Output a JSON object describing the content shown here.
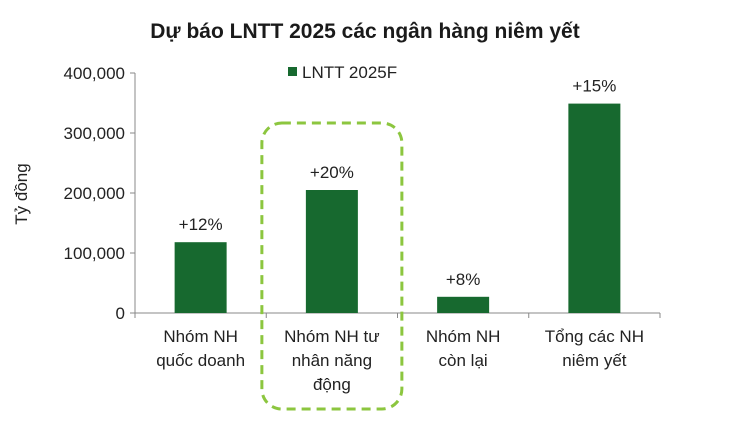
{
  "chart_data": {
    "type": "bar",
    "title": "Dự báo LNTT 2025 các ngân hàng niêm yết",
    "ylabel": "Tỷ đồng",
    "xlabel": "",
    "ylim": [
      0,
      400000
    ],
    "yticks": [
      0,
      100000,
      200000,
      300000,
      400000
    ],
    "ytick_labels": [
      "0",
      "100,000",
      "200,000",
      "300,000",
      "400,000"
    ],
    "categories": [
      [
        "Nhóm NH",
        "quốc doanh"
      ],
      [
        "Nhóm NH tư",
        "nhân năng",
        "động"
      ],
      [
        "Nhóm NH",
        "còn lại"
      ],
      [
        "Tổng các NH",
        "niêm yết"
      ]
    ],
    "series": [
      {
        "name": "LNTT 2025F",
        "values": [
          118000,
          205000,
          27000,
          349000
        ],
        "data_labels": [
          "+12%",
          "+20%",
          "+8%",
          "+15%"
        ]
      }
    ],
    "legend_position": "top-center",
    "highlight_category_index": 1,
    "grid": false,
    "colors": {
      "bar": "#17692f",
      "highlight_border": "#8cc63f",
      "axis": "#888888"
    }
  }
}
